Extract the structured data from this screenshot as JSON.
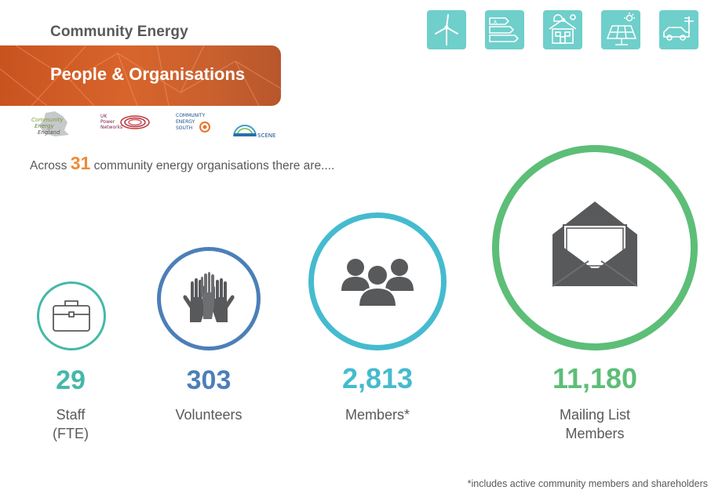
{
  "header": {
    "supertitle": "Community Energy",
    "banner_title": "People & Organisations"
  },
  "logos": [
    {
      "name": "Community Energy England",
      "lines": [
        "Community",
        "Energy",
        "England"
      ]
    },
    {
      "name": "UK Power Networks",
      "lines": [
        "UK",
        "Power",
        "Networks"
      ]
    },
    {
      "name": "Community Energy South",
      "lines": [
        "COMMUNITY",
        "ENERGY",
        "SOUTH"
      ]
    },
    {
      "name": "SCENE",
      "lines": [
        "SCENE"
      ]
    }
  ],
  "top_icons": [
    "wind-turbine-icon",
    "energy-rating-icon",
    "smart-home-icon",
    "solar-panel-icon",
    "electric-car-icon"
  ],
  "intro": {
    "before": "Across",
    "count": "31",
    "after": "community energy organisations there are...."
  },
  "stats": [
    {
      "value": "29",
      "label_lines": [
        "Staff",
        "(FTE)"
      ],
      "icon": "briefcase-icon",
      "color": "#45b8a9"
    },
    {
      "value": "303",
      "label_lines": [
        "Volunteers"
      ],
      "icon": "raised-hands-icon",
      "color": "#4c7fb8"
    },
    {
      "value": "2,813",
      "label_lines": [
        "Members*"
      ],
      "icon": "people-group-icon",
      "color": "#45bbcf"
    },
    {
      "value": "11,180",
      "label_lines": [
        "Mailing List",
        "Members"
      ],
      "icon": "open-envelope-icon",
      "color": "#5dbe78"
    }
  ],
  "footnote": "*includes active community members and shareholders",
  "colors": {
    "banner": "#d35d27",
    "accent_orange": "#ed8b3a",
    "top_icon_bg": "#6fcfcb",
    "icon_grey": "#58595b"
  }
}
